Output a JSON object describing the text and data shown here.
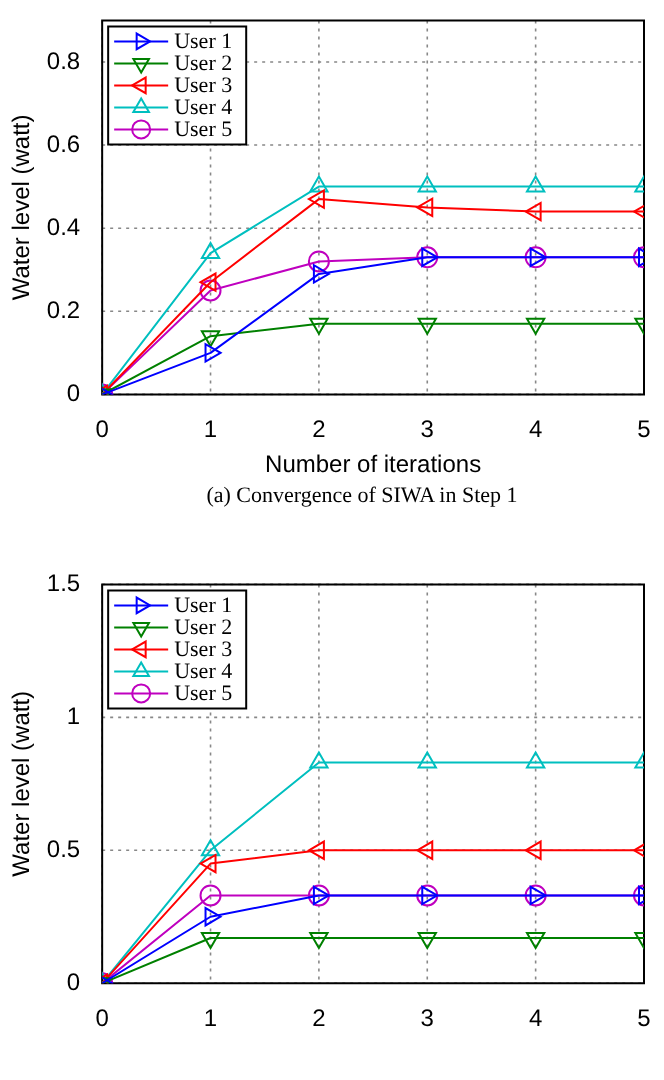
{
  "chart_data": [
    {
      "type": "line",
      "xlabel": "Number of iterations",
      "ylabel": "Water level (watt)",
      "annotations": [
        "(a) Convergence of SIWA in Step 1"
      ],
      "x": [
        0,
        1,
        2,
        3,
        4,
        5
      ],
      "xlim": [
        0,
        5
      ],
      "xticks": [
        0,
        1,
        2,
        3,
        4,
        5
      ],
      "ylim": [
        0,
        0.9
      ],
      "yticks": [
        0,
        0.2,
        0.4,
        0.6,
        0.8
      ],
      "grid": true,
      "legend": "top left",
      "series": [
        {
          "name": "User 1",
          "color": "#0000ff",
          "marker": "triangle-right",
          "values": [
            0,
            0.1,
            0.29,
            0.33,
            0.33,
            0.33
          ]
        },
        {
          "name": "User 2",
          "color": "#008000",
          "marker": "triangle-down",
          "values": [
            0,
            0.14,
            0.17,
            0.17,
            0.17,
            0.17
          ]
        },
        {
          "name": "User 3",
          "color": "#ff0000",
          "marker": "triangle-left",
          "values": [
            0,
            0.27,
            0.47,
            0.45,
            0.44,
            0.44
          ]
        },
        {
          "name": "User 4",
          "color": "#00bfbf",
          "marker": "triangle",
          "values": [
            0,
            0.34,
            0.5,
            0.5,
            0.5,
            0.5
          ]
        },
        {
          "name": "User 5",
          "color": "#bf00bf",
          "marker": "circle",
          "values": [
            0,
            0.25,
            0.32,
            0.33,
            0.33,
            0.33
          ]
        }
      ]
    },
    {
      "type": "line",
      "ylabel": "Water level (watt)",
      "x": [
        0,
        1,
        2,
        3,
        4,
        5
      ],
      "xlim": [
        0,
        5
      ],
      "xticks": [
        0,
        1,
        2,
        3,
        4,
        5
      ],
      "ylim": [
        0,
        1.5
      ],
      "yticks": [
        0,
        0.5,
        1,
        1.5
      ],
      "grid": true,
      "legend": "top left",
      "series": [
        {
          "name": "User 1",
          "color": "#0000ff",
          "marker": "triangle-right",
          "values": [
            0,
            0.25,
            0.33,
            0.33,
            0.33,
            0.33
          ]
        },
        {
          "name": "User 2",
          "color": "#008000",
          "marker": "triangle-down",
          "values": [
            0,
            0.17,
            0.17,
            0.17,
            0.17,
            0.17
          ]
        },
        {
          "name": "User 3",
          "color": "#ff0000",
          "marker": "triangle-left",
          "values": [
            0,
            0.45,
            0.5,
            0.5,
            0.5,
            0.5
          ]
        },
        {
          "name": "User 4",
          "color": "#00bfbf",
          "marker": "triangle",
          "values": [
            0,
            0.5,
            0.83,
            0.83,
            0.83,
            0.83
          ]
        },
        {
          "name": "User 5",
          "color": "#bf00bf",
          "marker": "circle",
          "values": [
            0,
            0.33,
            0.33,
            0.33,
            0.33,
            0.33
          ]
        }
      ]
    }
  ]
}
